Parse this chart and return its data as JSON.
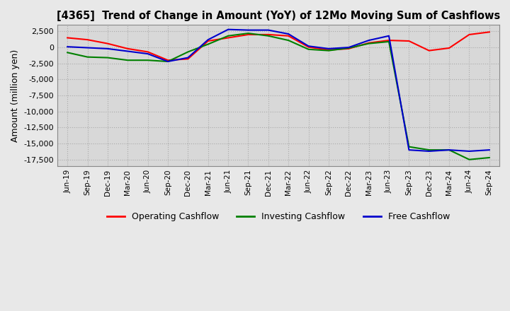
{
  "title": "[4365]  Trend of Change in Amount (YoY) of 12Mo Moving Sum of Cashflows",
  "ylabel": "Amount (million yen)",
  "ylim": [
    -18500,
    3500
  ],
  "yticks": [
    2500,
    0,
    -2500,
    -5000,
    -7500,
    -10000,
    -12500,
    -15000,
    -17500
  ],
  "x_labels": [
    "Jun-19",
    "Sep-19",
    "Dec-19",
    "Mar-20",
    "Jun-20",
    "Sep-20",
    "Dec-20",
    "Mar-21",
    "Jun-21",
    "Sep-21",
    "Dec-21",
    "Mar-22",
    "Jun-22",
    "Sep-22",
    "Dec-22",
    "Mar-23",
    "Jun-23",
    "Sep-23",
    "Dec-23",
    "Mar-24",
    "Jun-24",
    "Sep-24"
  ],
  "operating": [
    1500,
    1200,
    600,
    -200,
    -700,
    -2000,
    -1800,
    1000,
    1500,
    2000,
    2000,
    1800,
    50,
    -400,
    -200,
    700,
    1100,
    1000,
    -500,
    -100,
    2000,
    2400
  ],
  "investing": [
    -800,
    -1500,
    -1600,
    -2000,
    -2000,
    -2200,
    -700,
    500,
    1800,
    2200,
    1800,
    1100,
    -300,
    -500,
    -100,
    600,
    900,
    -15500,
    -16000,
    -16000,
    -17500,
    -17200
  ],
  "free": [
    100,
    -50,
    -200,
    -600,
    -1000,
    -2200,
    -1600,
    1200,
    2800,
    2700,
    2700,
    2100,
    200,
    -200,
    0,
    1100,
    1800,
    -16000,
    -16200,
    -16000,
    -16200,
    -16000
  ],
  "op_color": "#ff0000",
  "inv_color": "#008000",
  "free_color": "#0000cd",
  "bg_color": "#e8e8e8",
  "plot_bg_color": "#d8d8d8",
  "grid_color": "#aaaaaa",
  "legend_labels": [
    "Operating Cashflow",
    "Investing Cashflow",
    "Free Cashflow"
  ]
}
